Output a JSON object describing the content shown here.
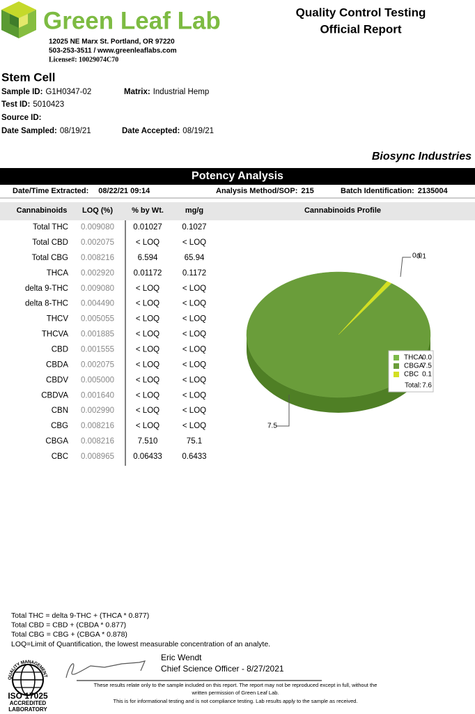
{
  "header": {
    "brand": "Green Leaf Lab",
    "address": "12025 NE Marx St. Portland, OR 97220",
    "contact": "503-253-3511 / www.greenleaflabs.com",
    "license": "License#: 10029074C70",
    "report_title": [
      "Quality Control Testing",
      "Official Report"
    ]
  },
  "sample": {
    "name": "Stem Cell",
    "fields": [
      {
        "label": "Sample ID:",
        "value": "G1H0347-02"
      },
      {
        "label": "Matrix:",
        "value": "Industrial Hemp"
      },
      {
        "label": "Test ID:",
        "value": "5010423"
      },
      {
        "label": "Source ID:"
      },
      {
        "label": "Date Sampled:",
        "value": "08/19/21"
      },
      {
        "label": "Date Accepted:",
        "value": "08/19/21"
      }
    ]
  },
  "client": "Biosync Industries",
  "potency": {
    "title": "Potency Analysis",
    "meta": [
      {
        "label": "Date/Time Extracted:",
        "value": "08/22/21  09:14"
      },
      {
        "label": "Analysis Method/SOP:",
        "value": "215"
      },
      {
        "label": "Batch Identification:",
        "value": "2135004"
      }
    ],
    "columns": [
      "Cannabinoids",
      "LOQ (%)",
      "% by Wt.",
      "mg/g"
    ],
    "profile_title": "Cannabinoids Profile",
    "rows": [
      [
        "Total THC",
        "0.009080",
        "0.01027",
        "0.1027"
      ],
      [
        "Total CBD",
        "0.002075",
        "< LOQ",
        "< LOQ"
      ],
      [
        "Total CBG",
        "0.008216",
        "6.594",
        "65.94"
      ],
      [
        "THCA",
        "0.002920",
        "0.01172",
        "0.1172"
      ],
      [
        "delta 9-THC",
        "0.009080",
        "< LOQ",
        "< LOQ"
      ],
      [
        "delta 8-THC",
        "0.004490",
        "< LOQ",
        "< LOQ"
      ],
      [
        "THCV",
        "0.005055",
        "< LOQ",
        "< LOQ"
      ],
      [
        "THCVA",
        "0.001885",
        "< LOQ",
        "< LOQ"
      ],
      [
        "CBD",
        "0.001555",
        "< LOQ",
        "< LOQ"
      ],
      [
        "CBDA",
        "0.002075",
        "< LOQ",
        "< LOQ"
      ],
      [
        "CBDV",
        "0.005000",
        "< LOQ",
        "< LOQ"
      ],
      [
        "CBDVA",
        "0.001640",
        "< LOQ",
        "< LOQ"
      ],
      [
        "CBN",
        "0.002990",
        "< LOQ",
        "< LOQ"
      ],
      [
        "CBG",
        "0.008216",
        "< LOQ",
        "< LOQ"
      ],
      [
        "CBGA",
        "0.008216",
        "7.510",
        "75.1"
      ],
      [
        "CBC",
        "0.008965",
        "0.06433",
        "0.6433"
      ]
    ]
  },
  "profile": {
    "type": "pie",
    "series": [
      {
        "name": "THCA",
        "color": "#7cba4a"
      },
      {
        "name": "CBGA",
        "color": "#6a9d3a"
      },
      {
        "name": "CBC",
        "color": "#d3df22"
      }
    ],
    "values": [
      0.01172,
      7.51,
      0.06433
    ],
    "value_labels": [
      "0.0",
      "7.5",
      "0.1"
    ],
    "total_label": "Total:",
    "total": "7.6"
  },
  "notes": [
    "Total THC =  delta 9-THC + (THCA * 0.877)",
    "Total CBD =  CBD + (CBDA * 0.877)",
    "Total CBG = CBG + (CBGA * 0.878)",
    "LOQ=Limit of Quantification, the lowest measurable concentration of an analyte."
  ],
  "signature": {
    "name": "Eric Wendt",
    "role": "Chief Science Officer - 8/27/2021"
  },
  "iso": {
    "ring": "QUALITY MANAGEMENT SYSTEM",
    "lines": [
      "ISO 17025",
      "ACCREDITED",
      "LABORATORY"
    ]
  },
  "disclaimer": [
    "These results relate only to the sample included on this report. The report may not be reproduced except in full, without the",
    "written permission of Green Leaf Lab.",
    "This is for informational testing and is not compliance testing. Lab results apply to the sample as received."
  ]
}
